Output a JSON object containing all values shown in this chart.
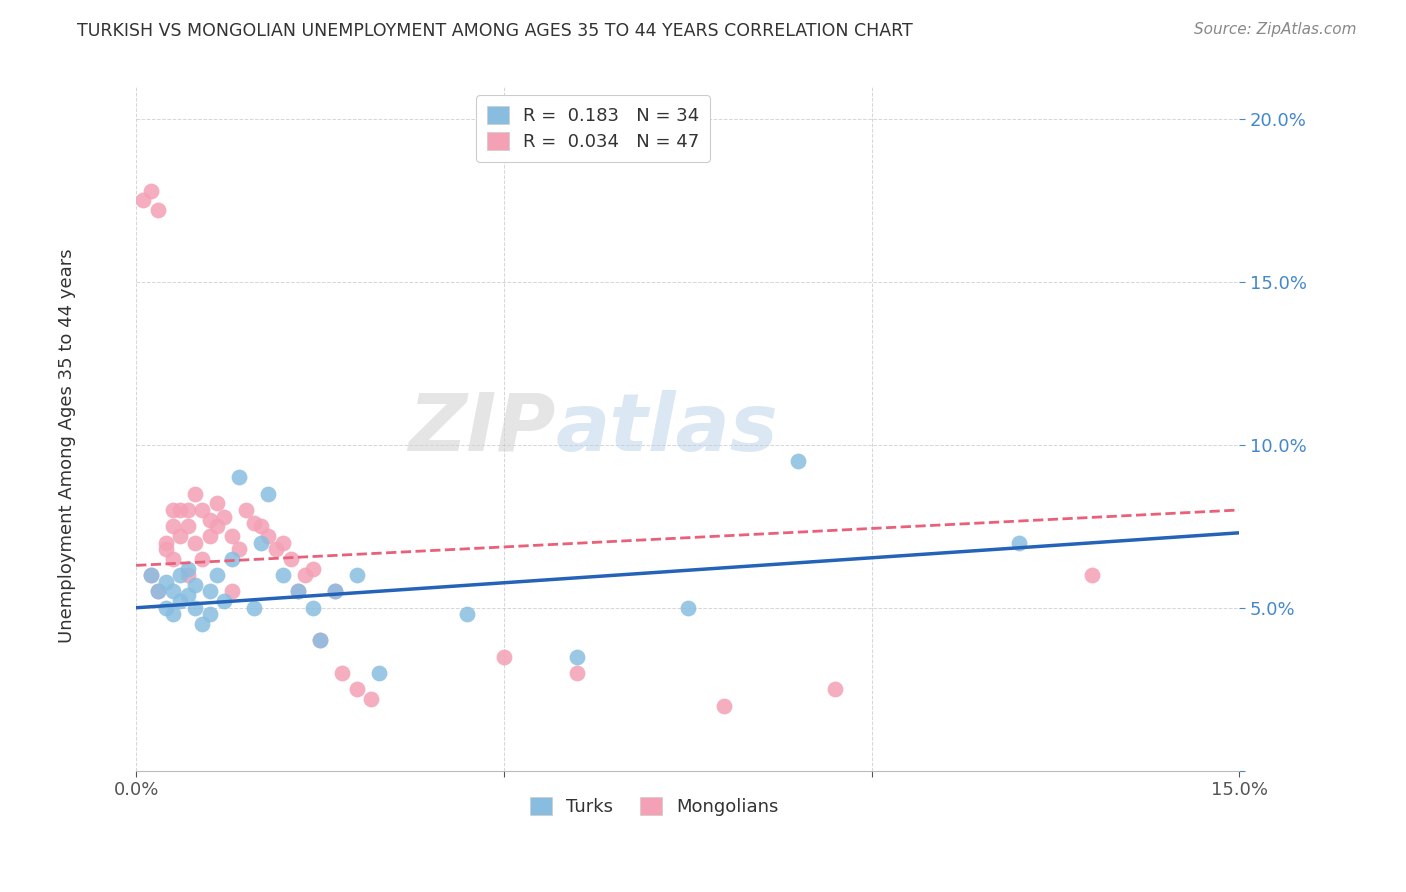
{
  "title": "TURKISH VS MONGOLIAN UNEMPLOYMENT AMONG AGES 35 TO 44 YEARS CORRELATION CHART",
  "source": "Source: ZipAtlas.com",
  "ylabel": "Unemployment Among Ages 35 to 44 years",
  "xlim": [
    0.0,
    0.15
  ],
  "ylim": [
    0.0,
    0.21
  ],
  "xticks": [
    0.0,
    0.05,
    0.1,
    0.15
  ],
  "xticklabels": [
    "0.0%",
    "",
    "",
    "15.0%"
  ],
  "yticks": [
    0.0,
    0.05,
    0.1,
    0.15,
    0.2
  ],
  "yticklabels_right": [
    "",
    "5.0%",
    "10.0%",
    "15.0%",
    "20.0%"
  ],
  "turks_color": "#89bde0",
  "mongolians_color": "#f4a0b5",
  "turks_line_color": "#2563b8",
  "mongolians_line_color": "#e8607a",
  "turks_R": 0.183,
  "turks_N": 34,
  "mongolians_R": 0.034,
  "mongolians_N": 47,
  "background_color": "#ffffff",
  "turks_x": [
    0.002,
    0.003,
    0.004,
    0.004,
    0.005,
    0.005,
    0.006,
    0.006,
    0.007,
    0.007,
    0.008,
    0.008,
    0.009,
    0.01,
    0.01,
    0.011,
    0.012,
    0.013,
    0.014,
    0.016,
    0.017,
    0.018,
    0.02,
    0.022,
    0.024,
    0.025,
    0.027,
    0.03,
    0.033,
    0.045,
    0.06,
    0.075,
    0.09,
    0.12
  ],
  "turks_y": [
    0.06,
    0.055,
    0.058,
    0.05,
    0.055,
    0.048,
    0.052,
    0.06,
    0.054,
    0.062,
    0.05,
    0.057,
    0.045,
    0.055,
    0.048,
    0.06,
    0.052,
    0.065,
    0.09,
    0.05,
    0.07,
    0.085,
    0.06,
    0.055,
    0.05,
    0.04,
    0.055,
    0.06,
    0.03,
    0.048,
    0.035,
    0.05,
    0.095,
    0.07
  ],
  "mongolians_x": [
    0.001,
    0.002,
    0.002,
    0.003,
    0.003,
    0.004,
    0.004,
    0.005,
    0.005,
    0.005,
    0.006,
    0.006,
    0.007,
    0.007,
    0.007,
    0.008,
    0.008,
    0.009,
    0.009,
    0.01,
    0.01,
    0.011,
    0.011,
    0.012,
    0.013,
    0.013,
    0.014,
    0.015,
    0.016,
    0.017,
    0.018,
    0.019,
    0.02,
    0.021,
    0.022,
    0.023,
    0.024,
    0.025,
    0.027,
    0.028,
    0.03,
    0.032,
    0.05,
    0.06,
    0.08,
    0.095,
    0.13
  ],
  "mongolians_y": [
    0.175,
    0.178,
    0.06,
    0.172,
    0.055,
    0.07,
    0.068,
    0.075,
    0.08,
    0.065,
    0.072,
    0.08,
    0.075,
    0.08,
    0.06,
    0.085,
    0.07,
    0.08,
    0.065,
    0.072,
    0.077,
    0.075,
    0.082,
    0.078,
    0.072,
    0.055,
    0.068,
    0.08,
    0.076,
    0.075,
    0.072,
    0.068,
    0.07,
    0.065,
    0.055,
    0.06,
    0.062,
    0.04,
    0.055,
    0.03,
    0.025,
    0.022,
    0.035,
    0.03,
    0.02,
    0.025,
    0.06
  ],
  "turks_line_x": [
    0.0,
    0.15
  ],
  "turks_line_y": [
    0.05,
    0.073
  ],
  "mong_line_x": [
    0.0,
    0.15
  ],
  "mong_line_y": [
    0.063,
    0.08
  ]
}
